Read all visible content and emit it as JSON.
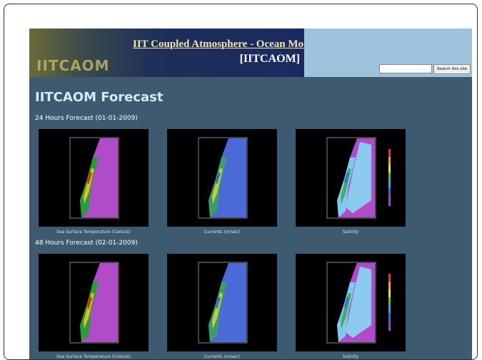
{
  "header": {
    "logo": "IITCAOM",
    "title": "IIT Coupled Atmosphere - Ocean Model",
    "subtitle": "[IITCAOM]"
  },
  "search": {
    "button": "Search this site"
  },
  "page_title": "IITCAOM Forecast",
  "sections": [
    {
      "heading": "24 Hours Forecast (01-01-2009)",
      "panels": [
        {
          "caption": "Sea Surface Temperature (Celsius)"
        },
        {
          "caption": "Currents (m/sec)"
        },
        {
          "caption": "Salinity"
        }
      ]
    },
    {
      "heading": "48 Hours Forecast (02-01-2009)",
      "panels": [
        {
          "caption": "Sea Surface Temperature (Celsius)"
        },
        {
          "caption": "Currents (m/sec)"
        },
        {
          "caption": "Salinity"
        }
      ]
    }
  ]
}
